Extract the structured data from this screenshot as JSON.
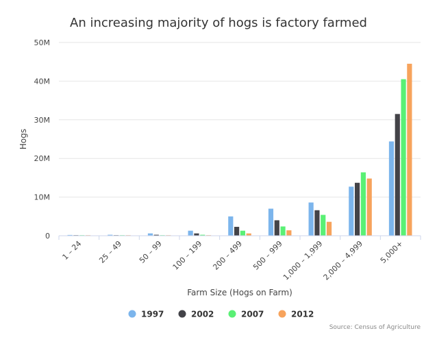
{
  "chart_data": {
    "type": "bar",
    "title": "An increasing majority of hogs is factory farmed",
    "xlabel": "Farm Size (Hogs on Farm)",
    "ylabel": "Hogs",
    "ylim": [
      0,
      50000000
    ],
    "yticks": [
      {
        "value": 0,
        "label": "0"
      },
      {
        "value": 10000000,
        "label": "10M"
      },
      {
        "value": 20000000,
        "label": "20M"
      },
      {
        "value": 30000000,
        "label": "30M"
      },
      {
        "value": 40000000,
        "label": "40M"
      },
      {
        "value": 50000000,
        "label": "50M"
      }
    ],
    "categories": [
      "1 – 24",
      "25 – 49",
      "50 – 99",
      "100 – 199",
      "200 – 499",
      "500 – 999",
      "1,000 – 1,999",
      "2,000 – 4,999",
      "5,000+"
    ],
    "series": [
      {
        "name": "1997",
        "color": "#7cb5ec",
        "values": [
          200000,
          250000,
          600000,
          1300000,
          5000000,
          7000000,
          8600000,
          12700000,
          24400000
        ]
      },
      {
        "name": "2002",
        "color": "#434348",
        "values": [
          100000,
          100000,
          250000,
          600000,
          2300000,
          4000000,
          6600000,
          13700000,
          31500000
        ]
      },
      {
        "name": "2007",
        "color": "#5af075",
        "values": [
          50000,
          50000,
          100000,
          250000,
          1300000,
          2400000,
          5400000,
          16400000,
          40500000
        ]
      },
      {
        "name": "2012",
        "color": "#f7a35c",
        "values": [
          30000,
          30000,
          60000,
          150000,
          600000,
          1400000,
          3600000,
          14800000,
          44500000
        ]
      }
    ],
    "legend_position": "bottom",
    "grid": true
  },
  "source": "Source: Census of Agriculture"
}
